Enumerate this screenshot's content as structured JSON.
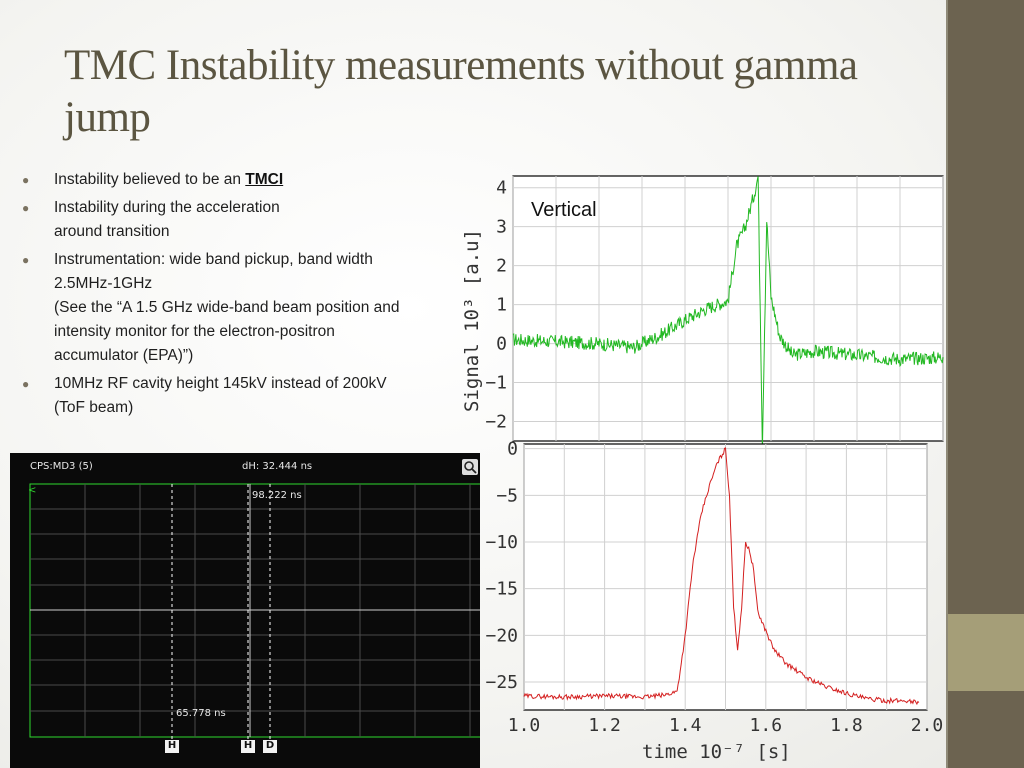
{
  "title": "TMC Instability measurements without gamma jump",
  "bullets": [
    {
      "text": "Instability believed to be an ",
      "link": "TMCI"
    },
    {
      "lines": [
        "Instability during the acceleration",
        "around transition"
      ]
    },
    {
      "lines": [
        "Instrumentation: wide band pickup, band width",
        "2.5MHz-1GHz",
        "(See the “A 1.5 GHz wide-band beam position and",
        "intensity monitor for the electron-positron",
        "accumulator (EPA)”)"
      ]
    },
    {
      "lines": [
        "10MHz RF cavity height 145kV instead of 200kV",
        "(ToF beam)"
      ]
    }
  ],
  "scope": {
    "channel_label": "CPS:MD3 (5)",
    "dh_label": "dH: 32.444 ns",
    "marker_upper": "98.222 ns",
    "marker_lower": "65.778 ns",
    "left_marker": "<",
    "cursor_h": "H",
    "cursor_d": "D",
    "zoom_icon": "magnifier-icon"
  },
  "chart_data": [
    {
      "type": "line",
      "title": "",
      "annotation": "Vertical",
      "ylabel": "Signal 10³ [a.u]",
      "xlim": [
        1.0,
        2.0
      ],
      "ylim": [
        -2.5,
        4.3
      ],
      "yticks": [
        4,
        3,
        2,
        1,
        0,
        -1,
        -2
      ],
      "ytick_labels": [
        "4",
        "3",
        "2",
        "1",
        "0",
        "−1",
        "−2"
      ],
      "grid": true,
      "color": "#22b822",
      "x": [
        1.0,
        1.1,
        1.2,
        1.28,
        1.34,
        1.4,
        1.45,
        1.5,
        1.52,
        1.54,
        1.56,
        1.57,
        1.58,
        1.59,
        1.6,
        1.62,
        1.65,
        1.7,
        1.8,
        1.9,
        2.0
      ],
      "y": [
        0.1,
        0.05,
        0.0,
        -0.1,
        0.2,
        0.6,
        0.9,
        1.1,
        2.5,
        3.0,
        3.8,
        4.3,
        -2.6,
        3.2,
        1.2,
        0.2,
        -0.3,
        -0.2,
        -0.3,
        -0.4,
        -0.35
      ]
    },
    {
      "type": "line",
      "title": "",
      "xlabel": "time 10⁻⁷ [s]",
      "xlim": [
        1.0,
        2.0
      ],
      "ylim": [
        -28,
        0.5
      ],
      "xticks": [
        1.0,
        1.2,
        1.4,
        1.6,
        1.8,
        2.0
      ],
      "xtick_labels": [
        "1.0",
        "1.2",
        "1.4",
        "1.6",
        "1.8",
        "2.0"
      ],
      "yticks": [
        0,
        -5,
        -10,
        -15,
        -20,
        -25
      ],
      "ytick_labels": [
        "0",
        "−5",
        "−10",
        "−15",
        "−20",
        "−25"
      ],
      "grid": true,
      "color": "#d42020",
      "x": [
        1.0,
        1.1,
        1.2,
        1.3,
        1.35,
        1.38,
        1.4,
        1.42,
        1.44,
        1.46,
        1.48,
        1.5,
        1.51,
        1.52,
        1.53,
        1.54,
        1.55,
        1.56,
        1.57,
        1.58,
        1.6,
        1.62,
        1.65,
        1.7,
        1.75,
        1.8,
        1.85,
        1.9,
        1.95,
        1.98
      ],
      "y": [
        -26.5,
        -26.6,
        -26.5,
        -26.6,
        -26.4,
        -26.0,
        -20.0,
        -12.0,
        -7.0,
        -4.0,
        -1.5,
        0.0,
        -5.0,
        -17.0,
        -21.5,
        -17.0,
        -10.0,
        -11.0,
        -13.0,
        -17.5,
        -19.5,
        -21.5,
        -23.0,
        -24.5,
        -25.5,
        -26.2,
        -26.8,
        -27.0,
        -27.0,
        -27.2
      ]
    }
  ]
}
